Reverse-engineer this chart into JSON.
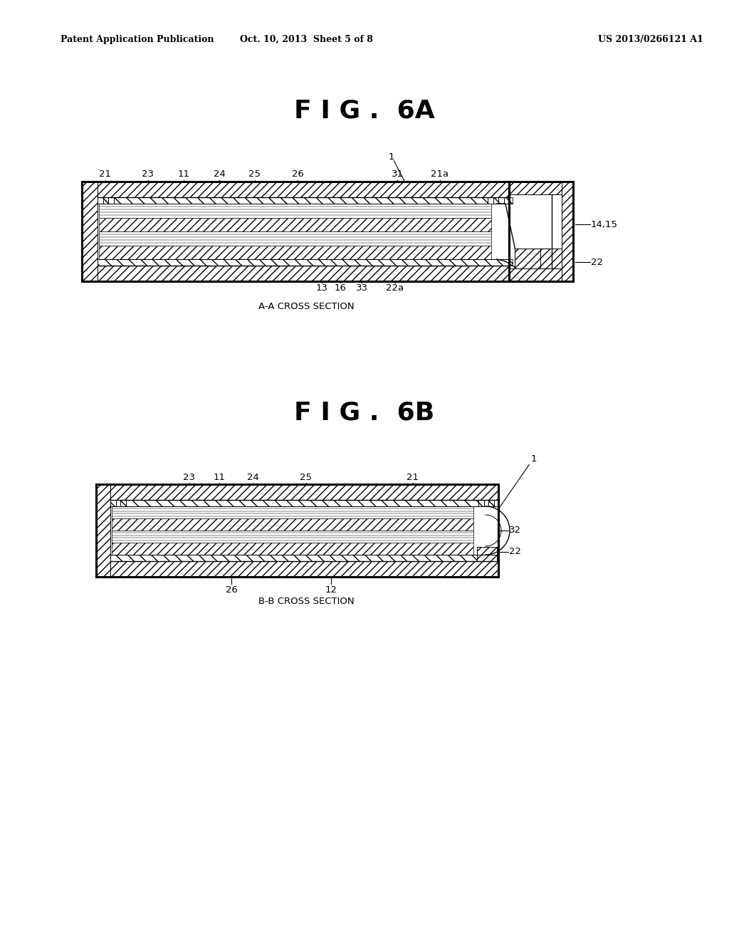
{
  "bg_color": "#ffffff",
  "header_left": "Patent Application Publication",
  "header_mid": "Oct. 10, 2013  Sheet 5 of 8",
  "header_right": "US 2013/0266121 A1",
  "fig6a_title": "F I G .  6A",
  "fig6b_title": "F I G .  6B",
  "fig6a_caption": "A-A CROSS SECTION",
  "fig6b_caption": "B-B CROSS SECTION"
}
